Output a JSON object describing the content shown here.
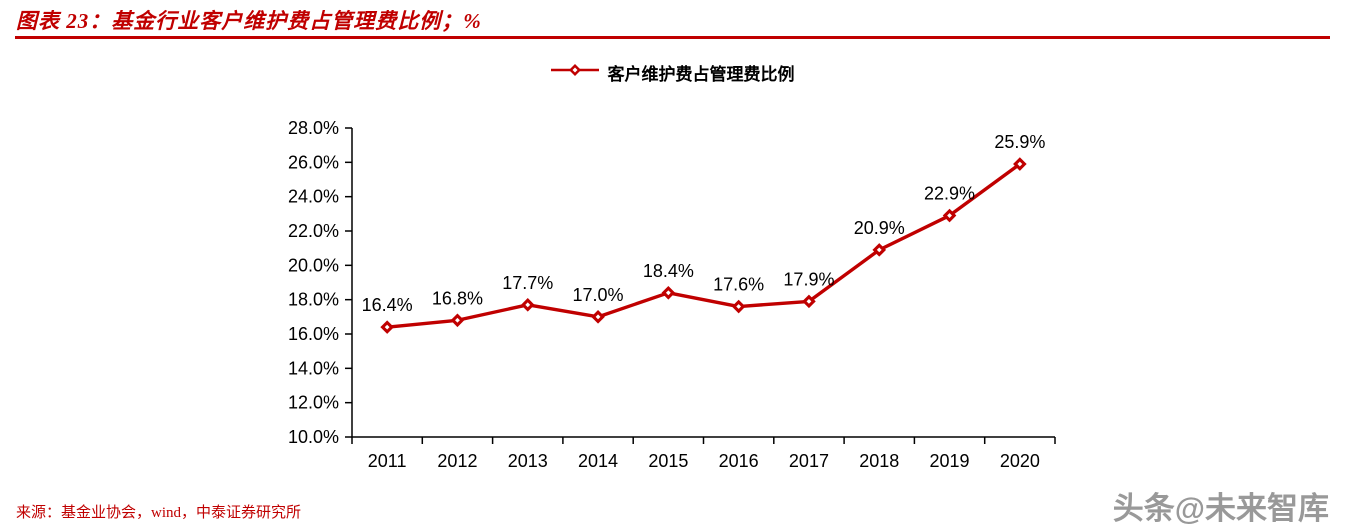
{
  "header": {
    "title": "图表 23：基金行业客户维护费占管理费比例；%"
  },
  "legend": {
    "label": "客户维护费占管理费比例"
  },
  "chart_data": {
    "type": "line",
    "title": "客户维护费占管理费比例",
    "categories": [
      "2011",
      "2012",
      "2013",
      "2014",
      "2015",
      "2016",
      "2017",
      "2018",
      "2019",
      "2020"
    ],
    "values": [
      16.4,
      16.8,
      17.7,
      17.0,
      18.4,
      17.6,
      17.9,
      20.9,
      22.9,
      25.9
    ],
    "data_labels": [
      "16.4%",
      "16.8%",
      "17.7%",
      "17.0%",
      "18.4%",
      "17.6%",
      "17.9%",
      "20.9%",
      "22.9%",
      "25.9%"
    ],
    "xlabel": "",
    "ylabel": "",
    "ylim": [
      10,
      28
    ],
    "ytick_step": 2,
    "ytick_labels": [
      "10.0%",
      "12.0%",
      "14.0%",
      "16.0%",
      "18.0%",
      "20.0%",
      "22.0%",
      "24.0%",
      "26.0%",
      "28.0%"
    ],
    "unit": "%",
    "grid": false,
    "legend_position": "top",
    "line_color": "#C00000",
    "marker": "diamond"
  },
  "footer": {
    "source": "来源：基金业协会，wind，中泰证券研究所"
  },
  "watermark": {
    "text": "头条@未来智库"
  },
  "colors": {
    "accent": "#C00000",
    "axis": "#000000",
    "watermark": "#999999",
    "background": "#ffffff"
  }
}
